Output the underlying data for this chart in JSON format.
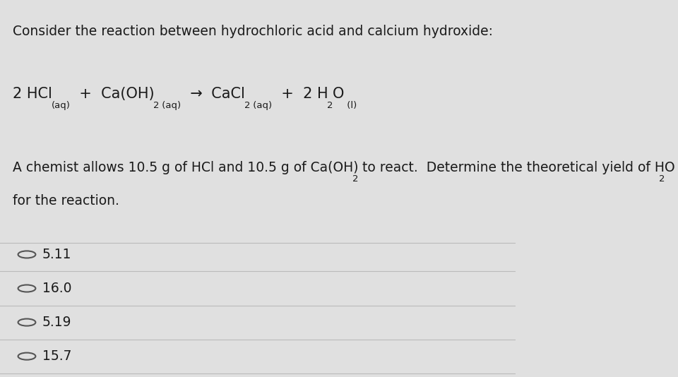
{
  "background_color": "#e0e0e0",
  "panel_color": "#efefef",
  "title_text": "Consider the reaction between hydrochloric acid and calcium hydroxide:",
  "choices": [
    "5.11",
    "16.0",
    "5.19",
    "15.7"
  ],
  "text_color": "#1a1a1a",
  "divider_color": "#bbbbbb",
  "circle_color": "#555555",
  "title_fontsize": 13.5,
  "equation_fontsize": 15,
  "question_fontsize": 13.5,
  "choice_fontsize": 13.5,
  "eq_sub_fontsize": 9.5,
  "q_sub_fontsize": 9.5
}
